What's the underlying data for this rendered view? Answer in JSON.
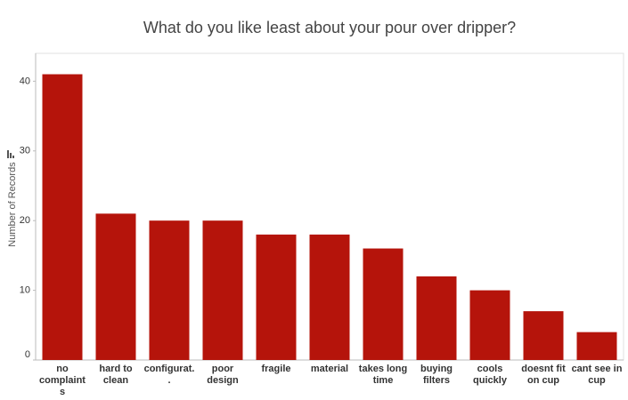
{
  "chart_data": {
    "type": "bar",
    "title": "What do you like least about your pour over dripper?",
    "y_label": "Number of Records",
    "categories": [
      "no complaints",
      "hard to clean",
      "configurat..",
      "poor design",
      "fragile",
      "material",
      "takes long time",
      "buying filters",
      "cools quickly",
      "doesnt fit on cup",
      "cant see in cup"
    ],
    "values": [
      41,
      21,
      20,
      20,
      18,
      18,
      16,
      12,
      10,
      7,
      4
    ],
    "color": "#b5140b",
    "ylim": [
      0,
      44
    ],
    "yticks": [
      0,
      10,
      20,
      30,
      40
    ],
    "grid": false
  }
}
